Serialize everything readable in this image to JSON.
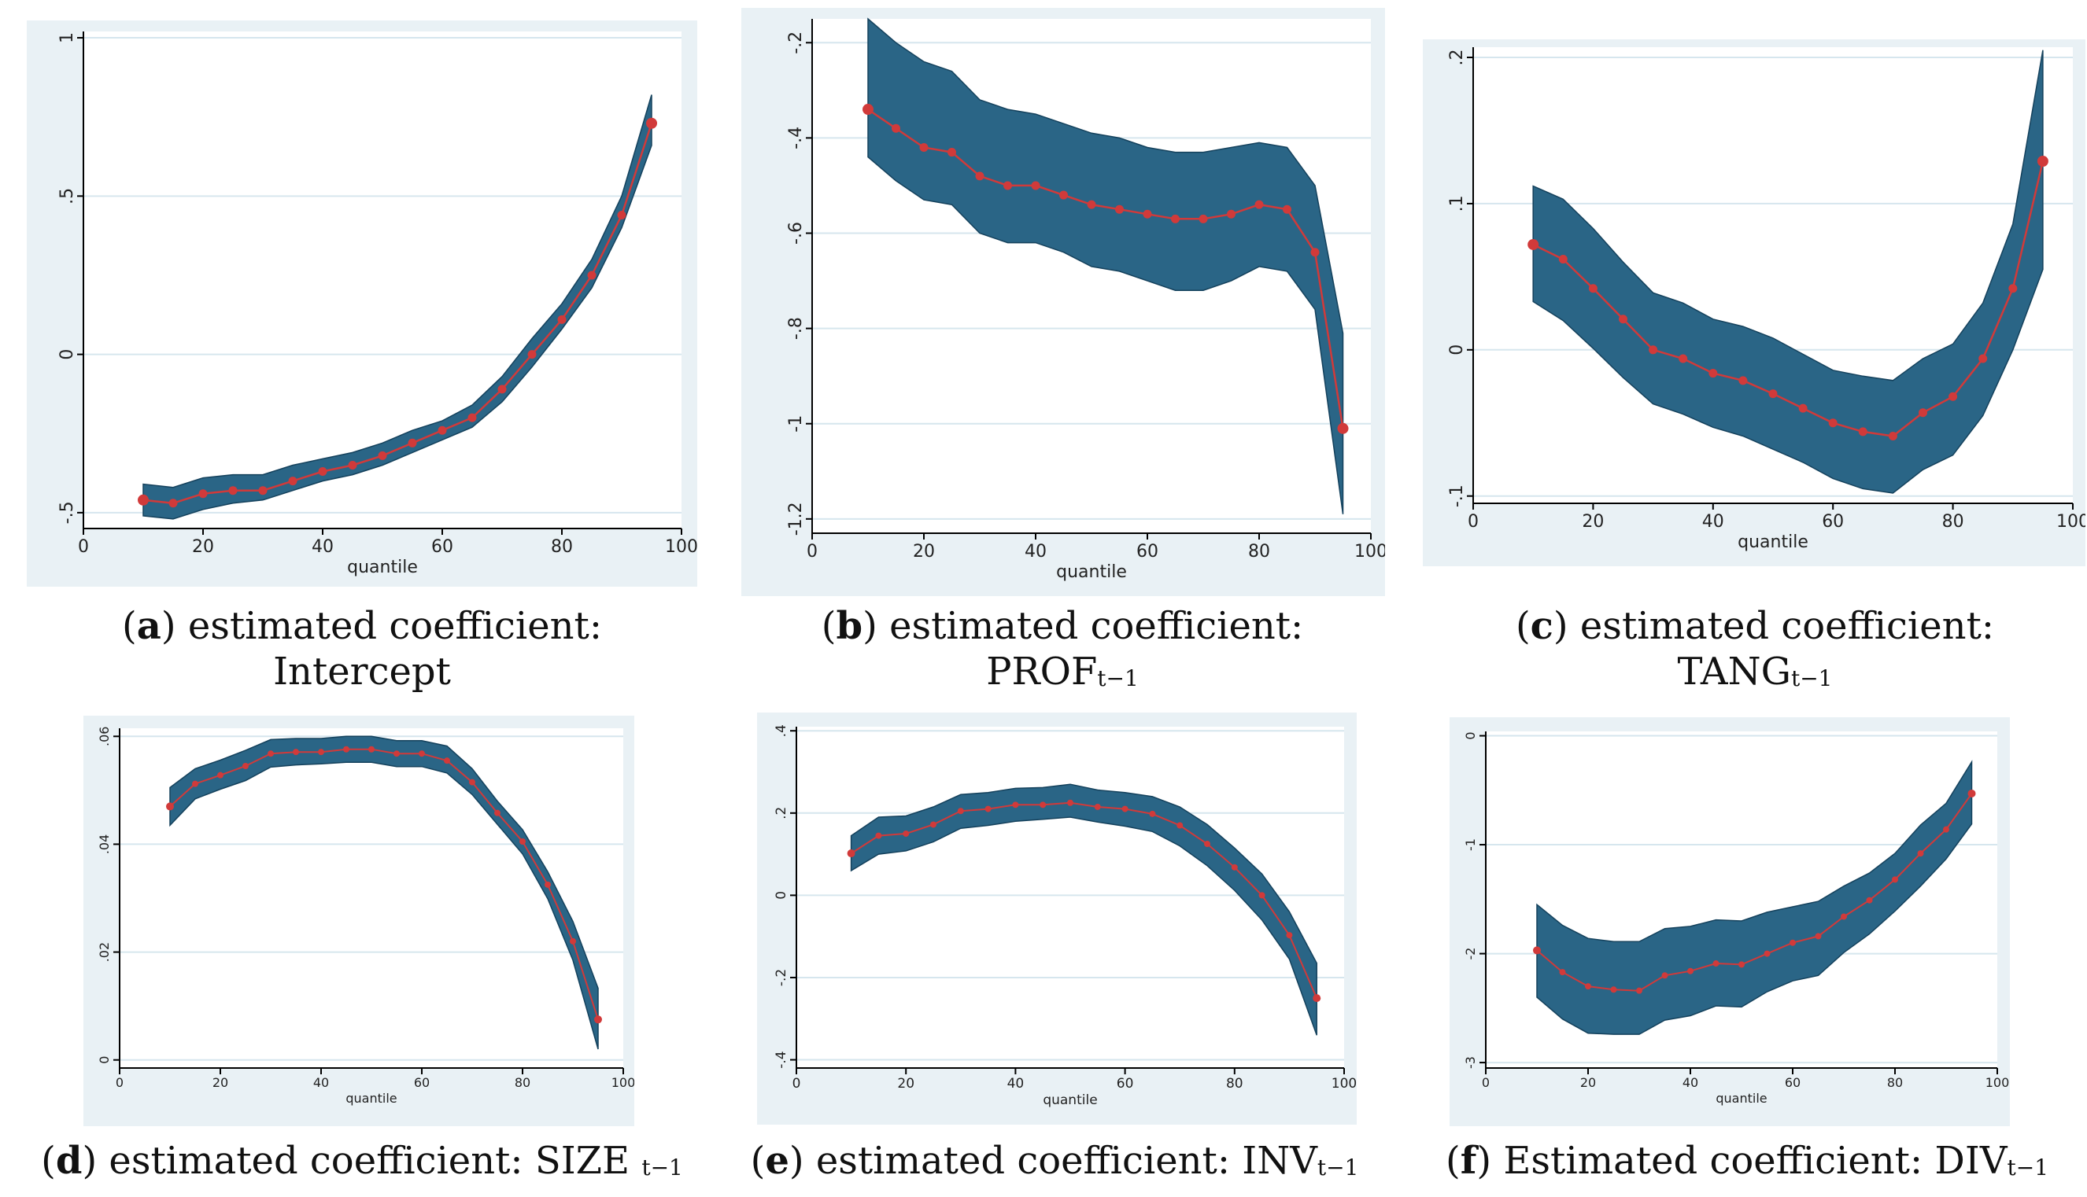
{
  "colors": {
    "panel_bg": "#e9f1f5",
    "plot_bg": "#ffffff",
    "band": "#2a6586",
    "band_edge": "#14415c",
    "line": "#d13a3a",
    "grid": "#d6e6ee"
  },
  "chart_data": [
    {
      "id": "a",
      "type": "line",
      "x": [
        10,
        15,
        20,
        25,
        30,
        35,
        40,
        45,
        50,
        55,
        60,
        65,
        70,
        75,
        80,
        85,
        90,
        95
      ],
      "estimate": [
        -0.46,
        -0.47,
        -0.44,
        -0.43,
        -0.43,
        -0.4,
        -0.37,
        -0.35,
        -0.32,
        -0.28,
        -0.24,
        -0.2,
        -0.11,
        0.0,
        0.11,
        0.25,
        0.44,
        0.73
      ],
      "lower": [
        -0.51,
        -0.52,
        -0.49,
        -0.47,
        -0.46,
        -0.43,
        -0.4,
        -0.38,
        -0.35,
        -0.31,
        -0.27,
        -0.23,
        -0.15,
        -0.04,
        0.08,
        0.21,
        0.4,
        0.66
      ],
      "upper": [
        -0.41,
        -0.42,
        -0.39,
        -0.38,
        -0.38,
        -0.35,
        -0.33,
        -0.31,
        -0.28,
        -0.24,
        -0.21,
        -0.16,
        -0.07,
        0.05,
        0.16,
        0.3,
        0.5,
        0.82
      ],
      "xlim": [
        0,
        100
      ],
      "ylim": [
        -0.55,
        1.02
      ],
      "xticks": [
        0,
        20,
        40,
        60,
        80,
        100
      ],
      "xtick_labels": [
        "0",
        "20",
        "40",
        "60",
        "80",
        "100"
      ],
      "yticks": [
        -0.5,
        0,
        0.5,
        1
      ],
      "ytick_labels": [
        "-.5",
        "0",
        ".5",
        "1"
      ],
      "xlabel": "quantile",
      "caption": {
        "letter": "a",
        "text": " estimated coefficient:",
        "line2": "Intercept",
        "sub": ""
      }
    },
    {
      "id": "b",
      "type": "line",
      "x": [
        10,
        15,
        20,
        25,
        30,
        35,
        40,
        45,
        50,
        55,
        60,
        65,
        70,
        75,
        80,
        85,
        90,
        95
      ],
      "estimate": [
        -0.34,
        -0.38,
        -0.42,
        -0.43,
        -0.48,
        -0.5,
        -0.5,
        -0.52,
        -0.54,
        -0.55,
        -0.56,
        -0.57,
        -0.57,
        -0.56,
        -0.54,
        -0.55,
        -0.64,
        -1.01
      ],
      "lower": [
        -0.44,
        -0.49,
        -0.53,
        -0.54,
        -0.6,
        -0.62,
        -0.62,
        -0.64,
        -0.67,
        -0.68,
        -0.7,
        -0.72,
        -0.72,
        -0.7,
        -0.67,
        -0.68,
        -0.76,
        -1.19
      ],
      "upper": [
        -0.15,
        -0.2,
        -0.24,
        -0.26,
        -0.32,
        -0.34,
        -0.35,
        -0.37,
        -0.39,
        -0.4,
        -0.42,
        -0.43,
        -0.43,
        -0.42,
        -0.41,
        -0.42,
        -0.5,
        -0.81
      ],
      "xlim": [
        0,
        100
      ],
      "ylim": [
        -1.23,
        -0.15
      ],
      "xticks": [
        0,
        20,
        40,
        60,
        80,
        100
      ],
      "xtick_labels": [
        "0",
        "20",
        "40",
        "60",
        "80",
        "100"
      ],
      "yticks": [
        -0.2,
        -0.4,
        -0.6,
        -0.8,
        -1.0,
        -1.2
      ],
      "ytick_labels": [
        "-.2",
        "-.4",
        "-.6",
        "-.8",
        "-1",
        "-1.2"
      ],
      "xlabel": "quantile",
      "caption": {
        "letter": "b",
        "text": " estimated coefficient:",
        "line2": "PROF",
        "sub": "t−1"
      }
    },
    {
      "id": "c",
      "type": "line",
      "x": [
        10,
        15,
        20,
        25,
        30,
        35,
        40,
        45,
        50,
        55,
        60,
        65,
        70,
        75,
        80,
        85,
        90,
        95
      ],
      "estimate": [
        0.072,
        0.062,
        0.042,
        0.021,
        0.0,
        -0.006,
        -0.016,
        -0.021,
        -0.03,
        -0.04,
        -0.05,
        -0.056,
        -0.059,
        -0.043,
        -0.032,
        -0.006,
        0.042,
        0.129
      ],
      "lower": [
        0.033,
        0.02,
        0.001,
        -0.019,
        -0.037,
        -0.044,
        -0.053,
        -0.059,
        -0.068,
        -0.077,
        -0.088,
        -0.095,
        -0.098,
        -0.082,
        -0.072,
        -0.045,
        0.0,
        0.055
      ],
      "upper": [
        0.112,
        0.103,
        0.083,
        0.06,
        0.039,
        0.032,
        0.021,
        0.016,
        0.008,
        -0.003,
        -0.014,
        -0.018,
        -0.021,
        -0.006,
        0.004,
        0.032,
        0.086,
        0.205
      ],
      "xlim": [
        0,
        100
      ],
      "ylim": [
        -0.105,
        0.207
      ],
      "xticks": [
        0,
        20,
        40,
        60,
        80,
        100
      ],
      "xtick_labels": [
        "0",
        "20",
        "40",
        "60",
        "80",
        "100"
      ],
      "yticks": [
        -0.1,
        0,
        0.1,
        0.2
      ],
      "ytick_labels": [
        "-.1",
        "0",
        ".1",
        ".2"
      ],
      "xlabel": "quantile",
      "caption": {
        "letter": "c",
        "text": " estimated coefficient:",
        "line2": "TANG",
        "sub": "t−1"
      }
    },
    {
      "id": "d",
      "type": "line",
      "x": [
        10,
        15,
        20,
        25,
        30,
        35,
        40,
        45,
        50,
        55,
        60,
        65,
        70,
        75,
        80,
        85,
        90,
        95
      ],
      "estimate": [
        0.047,
        0.0512,
        0.0528,
        0.0545,
        0.0568,
        0.0571,
        0.0571,
        0.0576,
        0.0576,
        0.0568,
        0.0568,
        0.0555,
        0.0515,
        0.0458,
        0.0405,
        0.0325,
        0.022,
        0.0075
      ],
      "lower": [
        0.0435,
        0.0484,
        0.0502,
        0.0518,
        0.0543,
        0.0547,
        0.0549,
        0.0552,
        0.0552,
        0.0544,
        0.0544,
        0.0532,
        0.0492,
        0.0437,
        0.0382,
        0.0299,
        0.0185,
        0.002
      ],
      "upper": [
        0.0505,
        0.054,
        0.0556,
        0.0574,
        0.0594,
        0.0596,
        0.0596,
        0.06,
        0.06,
        0.0592,
        0.0592,
        0.0582,
        0.054,
        0.048,
        0.0427,
        0.0349,
        0.0257,
        0.0133
      ],
      "xlim": [
        0,
        100
      ],
      "ylim": [
        -0.0015,
        0.0615
      ],
      "xticks": [
        0,
        20,
        40,
        60,
        80,
        100
      ],
      "xtick_labels": [
        "0",
        "20",
        "40",
        "60",
        "80",
        "100"
      ],
      "yticks": [
        0,
        0.02,
        0.04,
        0.06
      ],
      "ytick_labels": [
        "0",
        ".02",
        ".04",
        ".06"
      ],
      "xlabel": "quantile",
      "caption": {
        "letter": "d",
        "text": " estimated coefficient: SIZE ",
        "line2": "",
        "sub": "t−1"
      }
    },
    {
      "id": "e",
      "type": "line",
      "x": [
        10,
        15,
        20,
        25,
        30,
        35,
        40,
        45,
        50,
        55,
        60,
        65,
        70,
        75,
        80,
        85,
        90,
        95
      ],
      "estimate": [
        0.102,
        0.145,
        0.15,
        0.172,
        0.205,
        0.21,
        0.22,
        0.22,
        0.225,
        0.215,
        0.21,
        0.198,
        0.17,
        0.125,
        0.068,
        0.0,
        -0.097,
        -0.25
      ],
      "lower": [
        0.06,
        0.1,
        0.108,
        0.13,
        0.163,
        0.17,
        0.18,
        0.185,
        0.19,
        0.178,
        0.168,
        0.155,
        0.12,
        0.072,
        0.012,
        -0.06,
        -0.155,
        -0.34
      ],
      "upper": [
        0.145,
        0.19,
        0.193,
        0.215,
        0.245,
        0.25,
        0.26,
        0.262,
        0.27,
        0.256,
        0.25,
        0.24,
        0.215,
        0.172,
        0.115,
        0.052,
        -0.04,
        -0.165
      ],
      "xlim": [
        0,
        100
      ],
      "ylim": [
        -0.42,
        0.41
      ],
      "xticks": [
        0,
        20,
        40,
        60,
        80,
        100
      ],
      "xtick_labels": [
        "0",
        "20",
        "40",
        "60",
        "80",
        "100"
      ],
      "yticks": [
        -0.4,
        -0.2,
        0,
        0.2,
        0.4
      ],
      "ytick_labels": [
        "-.4",
        "-.2",
        "0",
        ".2",
        ".4"
      ],
      "xlabel": "quantile",
      "caption": {
        "letter": "e",
        "text": " estimated coefficient: INV",
        "line2": "",
        "sub": "t−1"
      }
    },
    {
      "id": "f",
      "type": "line",
      "x": [
        10,
        15,
        20,
        25,
        30,
        35,
        40,
        45,
        50,
        55,
        60,
        65,
        70,
        75,
        80,
        85,
        90,
        95
      ],
      "estimate": [
        -1.97,
        -2.17,
        -2.3,
        -2.33,
        -2.34,
        -2.2,
        -2.16,
        -2.09,
        -2.1,
        -2.0,
        -1.9,
        -1.84,
        -1.66,
        -1.51,
        -1.32,
        -1.08,
        -0.86,
        -0.53
      ],
      "lower": [
        -2.4,
        -2.6,
        -2.73,
        -2.74,
        -2.74,
        -2.61,
        -2.57,
        -2.48,
        -2.49,
        -2.35,
        -2.25,
        -2.2,
        -1.99,
        -1.82,
        -1.61,
        -1.38,
        -1.13,
        -0.81
      ],
      "upper": [
        -1.55,
        -1.74,
        -1.86,
        -1.89,
        -1.89,
        -1.77,
        -1.75,
        -1.69,
        -1.7,
        -1.62,
        -1.57,
        -1.52,
        -1.38,
        -1.26,
        -1.08,
        -0.82,
        -0.62,
        -0.24
      ],
      "xlim": [
        0,
        100
      ],
      "ylim": [
        -3.05,
        0.04
      ],
      "xticks": [
        0,
        20,
        40,
        60,
        80,
        100
      ],
      "xtick_labels": [
        "0",
        "20",
        "40",
        "60",
        "80",
        "100"
      ],
      "yticks": [
        0,
        -1,
        -2,
        -3
      ],
      "ytick_labels": [
        "0",
        "-1",
        "-2",
        "-3"
      ],
      "xlabel": "quantile",
      "caption": {
        "letter": "f",
        "text": " Estimated coefficient: DIV",
        "line2": "",
        "sub": "t−1"
      }
    }
  ]
}
